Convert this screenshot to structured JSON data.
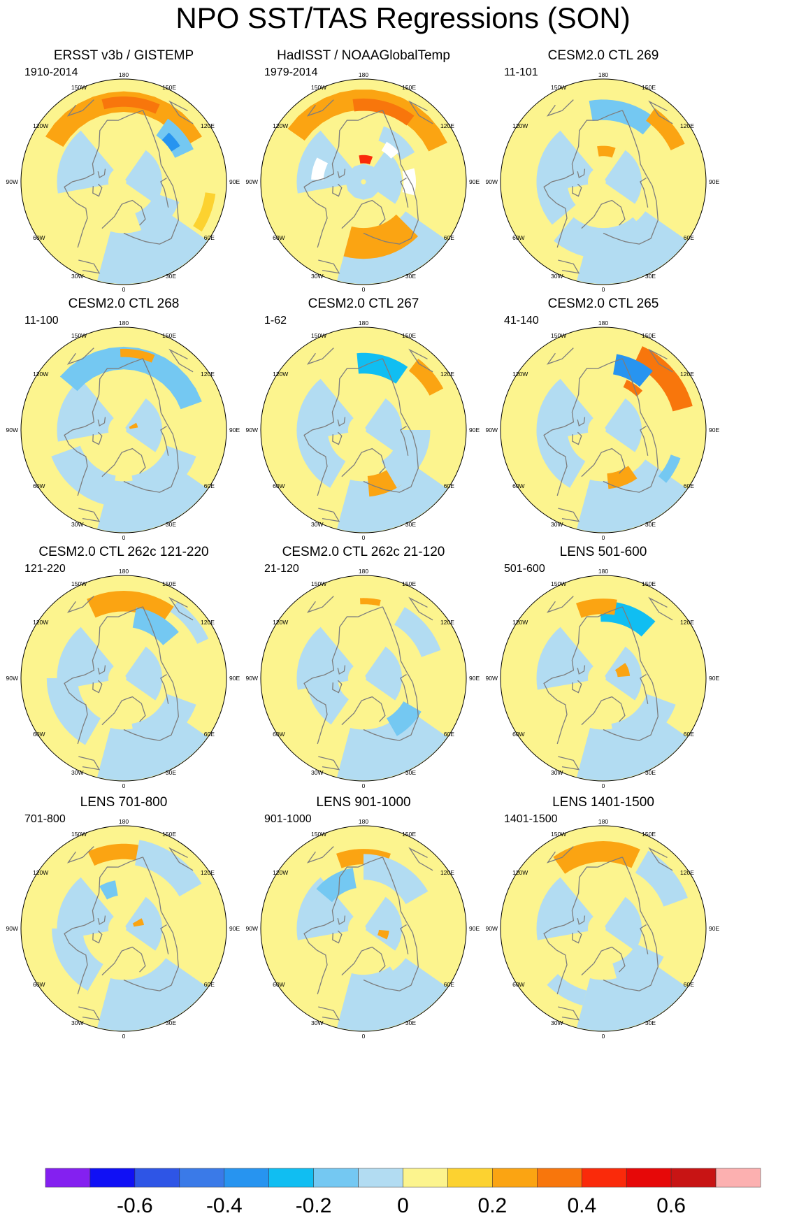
{
  "figure": {
    "title": "NPO SST/TAS Regressions (SON)"
  },
  "colors": {
    "coast": "#7d7d7d",
    "rim": "#000000",
    "missing": "#ffffff"
  },
  "chart_data": {
    "type": "heatmap",
    "projection": "north-polar-stereographic",
    "longitude_labels": [
      "180",
      "150E",
      "120E",
      "90E",
      "60E",
      "30E",
      "0",
      "30W",
      "60W",
      "90W",
      "120W",
      "150W"
    ],
    "colorbar": {
      "levels": [
        -0.7,
        -0.6,
        -0.5,
        -0.4,
        -0.3,
        -0.2,
        -0.1,
        0,
        0.1,
        0.2,
        0.3,
        0.4,
        0.5,
        0.6,
        0.7
      ],
      "tick_labels": [
        "-0.6",
        "-0.4",
        "-0.2",
        "0",
        "0.2",
        "0.4",
        "0.6"
      ],
      "colors": [
        "#8420f0",
        "#1010f5",
        "#2e55e6",
        "#3a7ae8",
        "#2794f0",
        "#10bef2",
        "#74c8f2",
        "#b2dcf2",
        "#fcf48e",
        "#fcd230",
        "#fba412",
        "#f8760c",
        "#fa2a0a",
        "#e60808",
        "#c81414",
        "#fcb0b0"
      ]
    },
    "panels": [
      {
        "title": "ERSST v3b / GISTEMP",
        "period": "1910-2014",
        "features": [
          {
            "lon": 180,
            "r": 0.78,
            "w": 120,
            "h": 0.2,
            "v": 0.25
          },
          {
            "lon": 175,
            "r": 0.78,
            "w": 40,
            "h": 0.1,
            "v": 0.35
          },
          {
            "lon": 130,
            "r": 0.65,
            "w": 30,
            "h": 0.2,
            "v": -0.2
          },
          {
            "lon": 130,
            "r": 0.6,
            "w": 15,
            "h": 0.1,
            "v": -0.35
          },
          {
            "lon": 45,
            "r": 0.45,
            "w": 50,
            "h": 0.25,
            "v": -0.1
          },
          {
            "lon": 70,
            "r": 0.85,
            "w": 25,
            "h": 0.1,
            "v": 0.15
          }
        ],
        "missing": []
      },
      {
        "title": "HadISST / NOAAGlobalTemp",
        "period": "1979-2014",
        "features": [
          {
            "lon": 175,
            "r": 0.8,
            "w": 120,
            "h": 0.2,
            "v": 0.25
          },
          {
            "lon": 165,
            "r": 0.75,
            "w": 45,
            "h": 0.12,
            "v": 0.35
          },
          {
            "lon": 140,
            "r": 0.5,
            "w": 40,
            "h": 0.15,
            "v": -0.1
          },
          {
            "lon": 15,
            "r": 0.6,
            "w": 60,
            "h": 0.3,
            "v": 0.2
          },
          {
            "lon": 175,
            "r": 0.22,
            "w": 30,
            "h": 0.08,
            "v": 0.45
          },
          {
            "lon": 0,
            "r": 0.1,
            "w": 360,
            "h": 0.15,
            "v": -0.1
          }
        ],
        "missing": [
          {
            "lon": 90,
            "r": 0.45,
            "w": 30,
            "h": 0.12
          },
          {
            "lon": 255,
            "r": 0.45,
            "w": 25,
            "h": 0.12
          },
          {
            "lon": 140,
            "r": 0.4,
            "w": 20,
            "h": 0.1
          }
        ]
      },
      {
        "title": "CESM2.0 CTL 269",
        "period": "11-101",
        "features": [
          {
            "lon": 165,
            "r": 0.7,
            "w": 50,
            "h": 0.2,
            "v": -0.2
          },
          {
            "lon": 130,
            "r": 0.8,
            "w": 30,
            "h": 0.15,
            "v": 0.2
          },
          {
            "lon": 175,
            "r": 0.3,
            "w": 30,
            "h": 0.1,
            "v": 0.2
          },
          {
            "lon": 0,
            "r": 0.6,
            "w": 80,
            "h": 0.3,
            "v": -0.1
          },
          {
            "lon": 270,
            "r": 0.5,
            "w": 80,
            "h": 0.3,
            "v": -0.1
          }
        ],
        "missing": []
      },
      {
        "title": "CESM2.0 CTL 268",
        "period": "11-100",
        "features": [
          {
            "lon": 170,
            "r": 0.7,
            "w": 120,
            "h": 0.22,
            "v": -0.2
          },
          {
            "lon": 170,
            "r": 0.75,
            "w": 25,
            "h": 0.08,
            "v": 0.2
          },
          {
            "lon": 110,
            "r": 0.1,
            "w": 20,
            "h": 0.08,
            "v": 0.2
          },
          {
            "lon": 320,
            "r": 0.6,
            "w": 60,
            "h": 0.3,
            "v": -0.1
          },
          {
            "lon": 40,
            "r": 0.6,
            "w": 60,
            "h": 0.3,
            "v": -0.1
          }
        ],
        "missing": []
      },
      {
        "title": "CESM2.0 CTL 267",
        "period": "1-62",
        "features": [
          {
            "lon": 165,
            "r": 0.65,
            "w": 40,
            "h": 0.2,
            "v": -0.25
          },
          {
            "lon": 130,
            "r": 0.8,
            "w": 25,
            "h": 0.15,
            "v": 0.2
          },
          {
            "lon": 20,
            "r": 0.55,
            "w": 30,
            "h": 0.2,
            "v": 0.25
          },
          {
            "lon": 60,
            "r": 0.5,
            "w": 60,
            "h": 0.3,
            "v": -0.1
          },
          {
            "lon": 300,
            "r": 0.5,
            "w": 60,
            "h": 0.3,
            "v": -0.1
          }
        ],
        "missing": []
      },
      {
        "title": "CESM2.0 CTL 265",
        "period": "41-140",
        "features": [
          {
            "lon": 130,
            "r": 0.8,
            "w": 50,
            "h": 0.2,
            "v": 0.3
          },
          {
            "lon": 155,
            "r": 0.65,
            "w": 30,
            "h": 0.2,
            "v": -0.35
          },
          {
            "lon": 145,
            "r": 0.5,
            "w": 20,
            "h": 0.08,
            "v": 0.3
          },
          {
            "lon": 20,
            "r": 0.5,
            "w": 30,
            "h": 0.15,
            "v": 0.25
          },
          {
            "lon": 60,
            "r": 0.75,
            "w": 20,
            "h": 0.1,
            "v": -0.2
          },
          {
            "lon": 300,
            "r": 0.5,
            "w": 60,
            "h": 0.3,
            "v": -0.1
          }
        ],
        "missing": []
      },
      {
        "title": "CESM2.0 CTL 262c 121-220",
        "period": "121-220",
        "features": [
          {
            "lon": 175,
            "r": 0.75,
            "w": 60,
            "h": 0.2,
            "v": 0.25
          },
          {
            "lon": 150,
            "r": 0.6,
            "w": 40,
            "h": 0.2,
            "v": -0.2
          },
          {
            "lon": 130,
            "r": 0.85,
            "w": 30,
            "h": 0.12,
            "v": -0.1
          },
          {
            "lon": 40,
            "r": 0.6,
            "w": 60,
            "h": 0.3,
            "v": -0.1
          },
          {
            "lon": 300,
            "r": 0.6,
            "w": 60,
            "h": 0.3,
            "v": -0.1
          }
        ],
        "missing": []
      },
      {
        "title": "CESM2.0 CTL 262c 21-120",
        "period": "21-120",
        "features": [
          {
            "lon": 130,
            "r": 0.7,
            "w": 40,
            "h": 0.2,
            "v": -0.1
          },
          {
            "lon": 45,
            "r": 0.55,
            "w": 30,
            "h": 0.2,
            "v": -0.2
          },
          {
            "lon": 290,
            "r": 0.4,
            "w": 70,
            "h": 0.3,
            "v": -0.1
          },
          {
            "lon": 175,
            "r": 0.75,
            "w": 15,
            "h": 0.06,
            "v": 0.2
          }
        ],
        "missing": []
      },
      {
        "title": "LENS 501-600",
        "period": "501-600",
        "features": [
          {
            "lon": 160,
            "r": 0.65,
            "w": 45,
            "h": 0.2,
            "v": -0.25
          },
          {
            "lon": 185,
            "r": 0.7,
            "w": 30,
            "h": 0.15,
            "v": 0.2
          },
          {
            "lon": 110,
            "r": 0.2,
            "w": 30,
            "h": 0.12,
            "v": 0.2
          },
          {
            "lon": 260,
            "r": 0.3,
            "w": 40,
            "h": 0.15,
            "v": -0.1
          },
          {
            "lon": 40,
            "r": 0.6,
            "w": 60,
            "h": 0.3,
            "v": -0.1
          }
        ],
        "missing": []
      },
      {
        "title": "LENS 701-800",
        "period": "701-800",
        "features": [
          {
            "lon": 185,
            "r": 0.75,
            "w": 40,
            "h": 0.15,
            "v": 0.2
          },
          {
            "lon": 145,
            "r": 0.75,
            "w": 50,
            "h": 0.25,
            "v": -0.1
          },
          {
            "lon": 200,
            "r": 0.4,
            "w": 20,
            "h": 0.15,
            "v": -0.15
          },
          {
            "lon": 110,
            "r": 0.15,
            "w": 20,
            "h": 0.1,
            "v": 0.2
          },
          {
            "lon": 300,
            "r": 0.55,
            "w": 60,
            "h": 0.3,
            "v": -0.1
          }
        ],
        "missing": []
      },
      {
        "title": "LENS 901-1000",
        "period": "901-1000",
        "features": [
          {
            "lon": 180,
            "r": 0.7,
            "w": 40,
            "h": 0.15,
            "v": 0.2
          },
          {
            "lon": 210,
            "r": 0.5,
            "w": 40,
            "h": 0.2,
            "v": -0.15
          },
          {
            "lon": 150,
            "r": 0.6,
            "w": 60,
            "h": 0.25,
            "v": -0.1
          },
          {
            "lon": 75,
            "r": 0.2,
            "w": 20,
            "h": 0.1,
            "v": 0.25
          },
          {
            "lon": 10,
            "r": 0.6,
            "w": 50,
            "h": 0.3,
            "v": -0.1
          }
        ],
        "missing": []
      },
      {
        "title": "LENS 1401-1500",
        "period": "1401-1500",
        "features": [
          {
            "lon": 185,
            "r": 0.75,
            "w": 60,
            "h": 0.2,
            "v": 0.25
          },
          {
            "lon": 130,
            "r": 0.75,
            "w": 40,
            "h": 0.25,
            "v": -0.1
          },
          {
            "lon": 40,
            "r": 0.5,
            "w": 50,
            "h": 0.3,
            "v": -0.1
          },
          {
            "lon": 330,
            "r": 0.7,
            "w": 30,
            "h": 0.15,
            "v": -0.1
          }
        ],
        "missing": []
      }
    ]
  }
}
